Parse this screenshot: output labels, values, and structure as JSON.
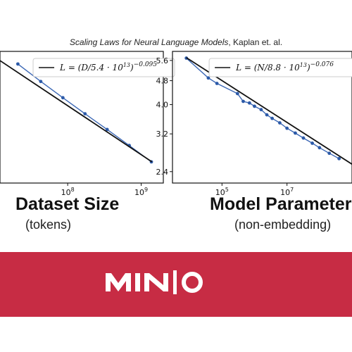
{
  "caption": {
    "title_italic": "Scaling Laws for Neural Language Models",
    "authors": ", Kaplan et. al."
  },
  "chart_data": [
    {
      "type": "line",
      "legend": "L = (D/5.4 · 10^13)^−0.095",
      "legend_placement": "top-right",
      "x_scale": "log",
      "y_scale": "log",
      "x_tick_labels": [
        "10^8",
        "10^9"
      ],
      "y_tick_labels": [],
      "xlim": [
        12000000,
        2000000000
      ],
      "ylim": [
        2.6,
        4.5
      ],
      "grid": false,
      "series": [
        {
          "type": "points",
          "x": [
            21000000,
            43000000,
            86000000,
            172000000,
            344000000,
            688000000,
            1376000000
          ],
          "y": [
            4.27,
            3.97,
            3.71,
            3.47,
            3.25,
            3.04,
            2.84
          ]
        },
        {
          "type": "fit",
          "x": [
            12000000,
            1400000000
          ],
          "y": [
            4.33,
            2.84
          ]
        }
      ],
      "title": "Dataset Size",
      "subtitle": "(tokens)"
    },
    {
      "type": "line",
      "legend": "L = (N/8.8 · 10^13)^−0.076",
      "legend_placement": "top-right",
      "x_scale": "log",
      "y_scale": "log",
      "x_tick_labels": [
        "10^5",
        "10^7"
      ],
      "y_tick_labels": [
        "2.4",
        "3.2",
        "4.0",
        "4.8",
        "5.6"
      ],
      "xlim": [
        3000,
        1000000000
      ],
      "ylim": [
        2.2,
        6.0
      ],
      "grid": false,
      "series": [
        {
          "type": "points",
          "x": [
            8000,
            38000,
            70000,
            300000,
            450000,
            700000,
            1000000,
            1600000,
            2400000,
            3500000,
            6000000,
            10000000,
            18000000,
            32000000,
            60000000,
            100000000,
            200000000,
            400000000
          ],
          "y": [
            5.7,
            4.9,
            4.7,
            4.35,
            4.1,
            4.05,
            3.95,
            3.85,
            3.7,
            3.6,
            3.48,
            3.34,
            3.22,
            3.1,
            2.98,
            2.88,
            2.76,
            2.65
          ]
        },
        {
          "type": "fit",
          "x": [
            8000,
            1000000000
          ],
          "y": [
            5.72,
            2.54
          ]
        }
      ],
      "title": "Model Parameters",
      "subtitle": "(non-embedding)"
    }
  ],
  "banner": {
    "logo_text": "MINIO",
    "background": "#c72c44",
    "logo_color": "#ffffff"
  }
}
